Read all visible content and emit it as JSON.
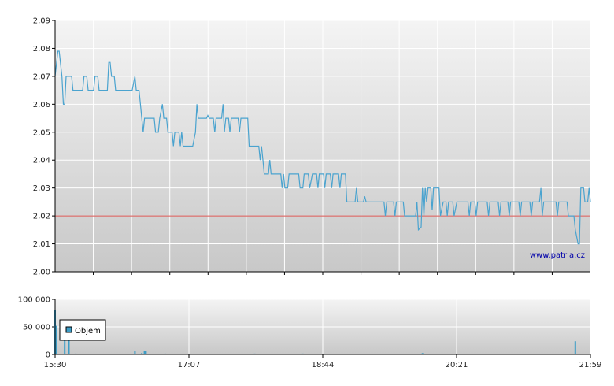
{
  "watermark": "www.patria.cz",
  "colors": {
    "price_line": "#4aa3cf",
    "reference_line": "#d9534f",
    "volume_bar": "#3d9dc6",
    "grid": "#ffffff",
    "plot_top": "#f4f4f4",
    "plot_bottom": "#c8c8c8",
    "axis": "#000000"
  },
  "chart_data": [
    {
      "type": "line",
      "name": "price",
      "ylim": [
        2.0,
        2.09
      ],
      "y_ticks": [
        "2,09",
        "2,08",
        "2,07",
        "2,06",
        "2,05",
        "2,04",
        "2,03",
        "2,02",
        "2,01",
        "2,00"
      ],
      "y_tick_values": [
        2.09,
        2.08,
        2.07,
        2.06,
        2.05,
        2.04,
        2.03,
        2.02,
        2.01,
        2.0
      ],
      "reference_line": 2.02,
      "grid": true,
      "xlim": [
        "15:30",
        "21:59"
      ],
      "points": [
        [
          "15:30",
          2.07
        ],
        [
          "15:32",
          2.079
        ],
        [
          "15:33",
          2.079
        ],
        [
          "15:35",
          2.07
        ],
        [
          "15:36",
          2.06
        ],
        [
          "15:37",
          2.06
        ],
        [
          "15:38",
          2.07
        ],
        [
          "15:42",
          2.07
        ],
        [
          "15:43",
          2.065
        ],
        [
          "15:50",
          2.065
        ],
        [
          "15:51",
          2.07
        ],
        [
          "15:53",
          2.07
        ],
        [
          "15:54",
          2.065
        ],
        [
          "15:58",
          2.065
        ],
        [
          "15:59",
          2.07
        ],
        [
          "16:01",
          2.07
        ],
        [
          "16:02",
          2.065
        ],
        [
          "16:08",
          2.065
        ],
        [
          "16:09",
          2.075
        ],
        [
          "16:10",
          2.075
        ],
        [
          "16:11",
          2.07
        ],
        [
          "16:13",
          2.07
        ],
        [
          "16:14",
          2.065
        ],
        [
          "16:26",
          2.065
        ],
        [
          "16:28",
          2.07
        ],
        [
          "16:29",
          2.065
        ],
        [
          "16:31",
          2.065
        ],
        [
          "16:32",
          2.06
        ],
        [
          "16:33",
          2.055
        ],
        [
          "16:34",
          2.05
        ],
        [
          "16:35",
          2.055
        ],
        [
          "16:42",
          2.055
        ],
        [
          "16:43",
          2.05
        ],
        [
          "16:45",
          2.05
        ],
        [
          "16:46",
          2.055
        ],
        [
          "16:48",
          2.06
        ],
        [
          "16:49",
          2.055
        ],
        [
          "16:51",
          2.055
        ],
        [
          "16:52",
          2.05
        ],
        [
          "16:55",
          2.05
        ],
        [
          "16:56",
          2.045
        ],
        [
          "16:57",
          2.05
        ],
        [
          "17:00",
          2.05
        ],
        [
          "17:01",
          2.045
        ],
        [
          "17:02",
          2.05
        ],
        [
          "17:03",
          2.045
        ],
        [
          "17:10",
          2.045
        ],
        [
          "17:12",
          2.05
        ],
        [
          "17:13",
          2.06
        ],
        [
          "17:14",
          2.055
        ],
        [
          "17:20",
          2.055
        ],
        [
          "17:21",
          2.056
        ],
        [
          "17:22",
          2.055
        ],
        [
          "17:25",
          2.055
        ],
        [
          "17:26",
          2.05
        ],
        [
          "17:27",
          2.055
        ],
        [
          "17:31",
          2.055
        ],
        [
          "17:32",
          2.06
        ],
        [
          "17:33",
          2.05
        ],
        [
          "17:34",
          2.055
        ],
        [
          "17:36",
          2.055
        ],
        [
          "17:37",
          2.05
        ],
        [
          "17:38",
          2.055
        ],
        [
          "17:43",
          2.055
        ],
        [
          "17:44",
          2.05
        ],
        [
          "17:45",
          2.055
        ],
        [
          "17:50",
          2.055
        ],
        [
          "17:51",
          2.045
        ],
        [
          "17:58",
          2.045
        ],
        [
          "17:59",
          2.04
        ],
        [
          "18:00",
          2.045
        ],
        [
          "18:01",
          2.04
        ],
        [
          "18:02",
          2.035
        ],
        [
          "18:05",
          2.035
        ],
        [
          "18:06",
          2.04
        ],
        [
          "18:07",
          2.035
        ],
        [
          "18:14",
          2.035
        ],
        [
          "18:15",
          2.03
        ],
        [
          "18:16",
          2.035
        ],
        [
          "18:17",
          2.03
        ],
        [
          "18:19",
          2.03
        ],
        [
          "18:20",
          2.035
        ],
        [
          "18:27",
          2.035
        ],
        [
          "18:28",
          2.03
        ],
        [
          "18:30",
          2.03
        ],
        [
          "18:31",
          2.035
        ],
        [
          "18:34",
          2.035
        ],
        [
          "18:35",
          2.03
        ],
        [
          "18:37",
          2.035
        ],
        [
          "18:40",
          2.035
        ],
        [
          "18:41",
          2.03
        ],
        [
          "18:42",
          2.035
        ],
        [
          "18:45",
          2.035
        ],
        [
          "18:46",
          2.03
        ],
        [
          "18:47",
          2.035
        ],
        [
          "18:50",
          2.035
        ],
        [
          "18:51",
          2.03
        ],
        [
          "18:52",
          2.035
        ],
        [
          "18:56",
          2.035
        ],
        [
          "18:57",
          2.03
        ],
        [
          "18:58",
          2.035
        ],
        [
          "19:01",
          2.035
        ],
        [
          "19:02",
          2.025
        ],
        [
          "19:08",
          2.025
        ],
        [
          "19:09",
          2.03
        ],
        [
          "19:10",
          2.025
        ],
        [
          "19:14",
          2.025
        ],
        [
          "19:15",
          2.027
        ],
        [
          "19:16",
          2.025
        ],
        [
          "19:29",
          2.025
        ],
        [
          "19:30",
          2.02
        ],
        [
          "19:31",
          2.025
        ],
        [
          "19:36",
          2.025
        ],
        [
          "19:37",
          2.02
        ],
        [
          "19:38",
          2.025
        ],
        [
          "19:43",
          2.025
        ],
        [
          "19:44",
          2.02
        ],
        [
          "19:52",
          2.02
        ],
        [
          "19:53",
          2.025
        ],
        [
          "19:54",
          2.015
        ],
        [
          "19:56",
          2.016
        ],
        [
          "19:57",
          2.03
        ],
        [
          "19:58",
          2.02
        ],
        [
          "19:59",
          2.03
        ],
        [
          "20:00",
          2.025
        ],
        [
          "20:01",
          2.03
        ],
        [
          "20:03",
          2.03
        ],
        [
          "20:04",
          2.022
        ],
        [
          "20:05",
          2.03
        ],
        [
          "20:09",
          2.03
        ],
        [
          "20:10",
          2.02
        ],
        [
          "20:12",
          2.025
        ],
        [
          "20:14",
          2.025
        ],
        [
          "20:15",
          2.02
        ],
        [
          "20:16",
          2.025
        ],
        [
          "20:19",
          2.025
        ],
        [
          "20:20",
          2.02
        ],
        [
          "20:22",
          2.025
        ],
        [
          "20:30",
          2.025
        ],
        [
          "20:31",
          2.02
        ],
        [
          "20:32",
          2.025
        ],
        [
          "20:35",
          2.025
        ],
        [
          "20:36",
          2.02
        ],
        [
          "20:37",
          2.025
        ],
        [
          "20:44",
          2.025
        ],
        [
          "20:45",
          2.02
        ],
        [
          "20:46",
          2.025
        ],
        [
          "20:52",
          2.025
        ],
        [
          "20:53",
          2.02
        ],
        [
          "20:54",
          2.025
        ],
        [
          "20:59",
          2.025
        ],
        [
          "21:00",
          2.02
        ],
        [
          "21:01",
          2.025
        ],
        [
          "21:07",
          2.025
        ],
        [
          "21:08",
          2.02
        ],
        [
          "21:09",
          2.025
        ],
        [
          "21:15",
          2.025
        ],
        [
          "21:16",
          2.02
        ],
        [
          "21:17",
          2.025
        ],
        [
          "21:22",
          2.025
        ],
        [
          "21:23",
          2.03
        ],
        [
          "21:24",
          2.02
        ],
        [
          "21:25",
          2.025
        ],
        [
          "21:34",
          2.025
        ],
        [
          "21:35",
          2.02
        ],
        [
          "21:36",
          2.025
        ],
        [
          "21:42",
          2.025
        ],
        [
          "21:43",
          2.02
        ],
        [
          "21:47",
          2.02
        ],
        [
          "21:48",
          2.015
        ],
        [
          "21:50",
          2.01
        ],
        [
          "21:51",
          2.01
        ],
        [
          "21:52",
          2.03
        ],
        [
          "21:54",
          2.03
        ],
        [
          "21:55",
          2.025
        ],
        [
          "21:57",
          2.025
        ],
        [
          "21:58",
          2.03
        ],
        [
          "21:59",
          2.025
        ]
      ]
    },
    {
      "type": "bar",
      "name": "volume",
      "legend": "Objem",
      "legend_position": "top-left",
      "ylim": [
        0,
        100000
      ],
      "y_ticks": [
        "100 000",
        "50 000",
        "0"
      ],
      "y_tick_values": [
        100000,
        50000,
        0
      ],
      "x_ticks": [
        "15:30",
        "17:07",
        "18:44",
        "20:21",
        "21:59"
      ],
      "grid": true,
      "xlim": [
        "15:30",
        "21:59"
      ],
      "bars": [
        [
          "15:30",
          80000
        ],
        [
          "15:31",
          52000
        ],
        [
          "15:37",
          48000
        ],
        [
          "15:40",
          42000
        ],
        [
          "15:45",
          1500
        ],
        [
          "16:02",
          1200
        ],
        [
          "16:28",
          6000
        ],
        [
          "16:33",
          2500
        ],
        [
          "16:35",
          6000
        ],
        [
          "16:36",
          6000
        ],
        [
          "16:50",
          1500
        ],
        [
          "17:10",
          1200
        ],
        [
          "17:55",
          1500
        ],
        [
          "18:30",
          1500
        ],
        [
          "18:45",
          1200
        ],
        [
          "19:05",
          1200
        ],
        [
          "19:35",
          1200
        ],
        [
          "19:57",
          2500
        ],
        [
          "20:05",
          1200
        ],
        [
          "20:40",
          1000
        ],
        [
          "21:10",
          1000
        ],
        [
          "21:48",
          24000
        ],
        [
          "21:58",
          1200
        ]
      ]
    }
  ]
}
